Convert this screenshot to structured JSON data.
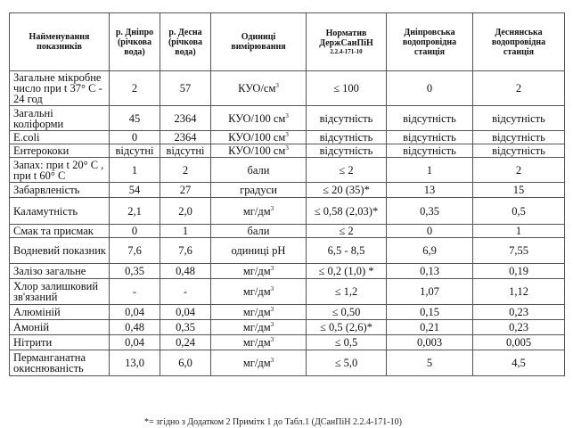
{
  "table": {
    "headers": {
      "name": "Найменування показників",
      "dnipro": [
        "р. Дніпро",
        "(річкова",
        "вода)"
      ],
      "desna": [
        "р. Десна",
        "(річкова",
        "вода)"
      ],
      "units": [
        "Одиниці",
        "вимірювання"
      ],
      "norm": [
        "Норматив",
        "ДержСанПіН"
      ],
      "norm_code": "2.2.4-171-10",
      "dnipro_station": [
        "Дніпровська",
        "водопровідна",
        "станція"
      ],
      "desna_station": [
        "Деснянська",
        "водопровідна",
        "станція"
      ]
    },
    "rows": [
      {
        "name": "Загальне мікробне число при t 37° С - 24 год",
        "dnipro": "2",
        "desna": "57",
        "unit": "КУО/см",
        "unit_sup": "3",
        "norm": "≤ 100",
        "dnipro_station": "0",
        "desna_station": "2"
      },
      {
        "name": "Загальні коліформи",
        "dnipro": "45",
        "desna": "2364",
        "unit": "КУО/100 см",
        "unit_sup": "3",
        "norm": "відсутність",
        "dnipro_station": "відсутність",
        "desna_station": "відсутність"
      },
      {
        "name": "E.coli",
        "dnipro": "0",
        "desna": "2364",
        "unit": "КУО/100 см",
        "unit_sup": "3",
        "norm": "відсутність",
        "dnipro_station": "відсутність",
        "desna_station": "відсутність"
      },
      {
        "name": "Ентерококи",
        "dnipro": "відсутні",
        "desna": "відсутні",
        "unit": "КУО/100 см",
        "unit_sup": "3",
        "norm": "відсутність",
        "dnipro_station": "відсутність",
        "desna_station": "відсутність"
      },
      {
        "name": "Запах: при t 20° С , при t 60° С",
        "dnipro": "1",
        "desna": "2",
        "unit": "бали",
        "unit_sup": "",
        "norm": "≤ 2",
        "dnipro_station": "1",
        "desna_station": "2"
      },
      {
        "name": "Забарвленість",
        "dnipro": "54",
        "desna": "27",
        "unit": "градуси",
        "unit_sup": "",
        "norm": "≤ 20 (35)*",
        "dnipro_station": "13",
        "desna_station": "15"
      },
      {
        "name": "Каламутність",
        "dnipro": "2,1",
        "desna": "2,0",
        "unit": "мг/дм",
        "unit_sup": "3",
        "norm": "≤ 0,58 (2,03)*",
        "dnipro_station": "0,35",
        "desna_station": "0,5"
      },
      {
        "name": "Смак та присмак",
        "dnipro": "0",
        "desna": "1",
        "unit": "бали",
        "unit_sup": "",
        "norm": "≤ 2",
        "dnipro_station": "0",
        "desna_station": "1"
      },
      {
        "name": "Водневий показник",
        "dnipro": "7,6",
        "desna": "7,6",
        "unit": "одиниці pH",
        "unit_sup": "",
        "norm": "6,5 - 8,5",
        "dnipro_station": "6,9",
        "desna_station": "7,55"
      },
      {
        "name": "Залізо загальне",
        "dnipro": "0,35",
        "desna": "0,48",
        "unit": "мг/дм",
        "unit_sup": "3",
        "norm": "≤ 0,2 (1,0) *",
        "dnipro_station": "0,13",
        "desna_station": "0,19"
      },
      {
        "name": "Хлор залишковий зв'язаний",
        "dnipro": "-",
        "desna": "-",
        "unit": "мг/дм",
        "unit_sup": "3",
        "norm": "≤ 1,2",
        "dnipro_station": "1,07",
        "desna_station": "1,12"
      },
      {
        "name": "Алюміній",
        "dnipro": "0,04",
        "desna": "0,04",
        "unit": "мг/дм",
        "unit_sup": "3",
        "norm": "≤ 0,50",
        "dnipro_station": "0,15",
        "desna_station": "0,23"
      },
      {
        "name": "Амоній",
        "dnipro": "0,48",
        "desna": "0,35",
        "unit": "мг/дм",
        "unit_sup": "3",
        "norm": "≤ 0,5 (2,6)*",
        "dnipro_station": "0,21",
        "desna_station": "0,23"
      },
      {
        "name": "Нітрити",
        "dnipro": "0,04",
        "desna": "0,24",
        "unit": "мг/дм",
        "unit_sup": "3",
        "norm": "≤ 0,5",
        "dnipro_station": "0,003",
        "desna_station": "0,005"
      },
      {
        "name": "Перманганатна окиснюваність",
        "dnipro": "13,0",
        "desna": "6,0",
        "unit": "мг/дм",
        "unit_sup": "3",
        "norm": "≤ 5,0",
        "dnipro_station": "5",
        "desna_station": "4,5"
      }
    ]
  },
  "footnote": "*= згідно з Додатком 2 Примітк 1 до Табл.1 (ДСанПіН 2.2.4-171-10)"
}
